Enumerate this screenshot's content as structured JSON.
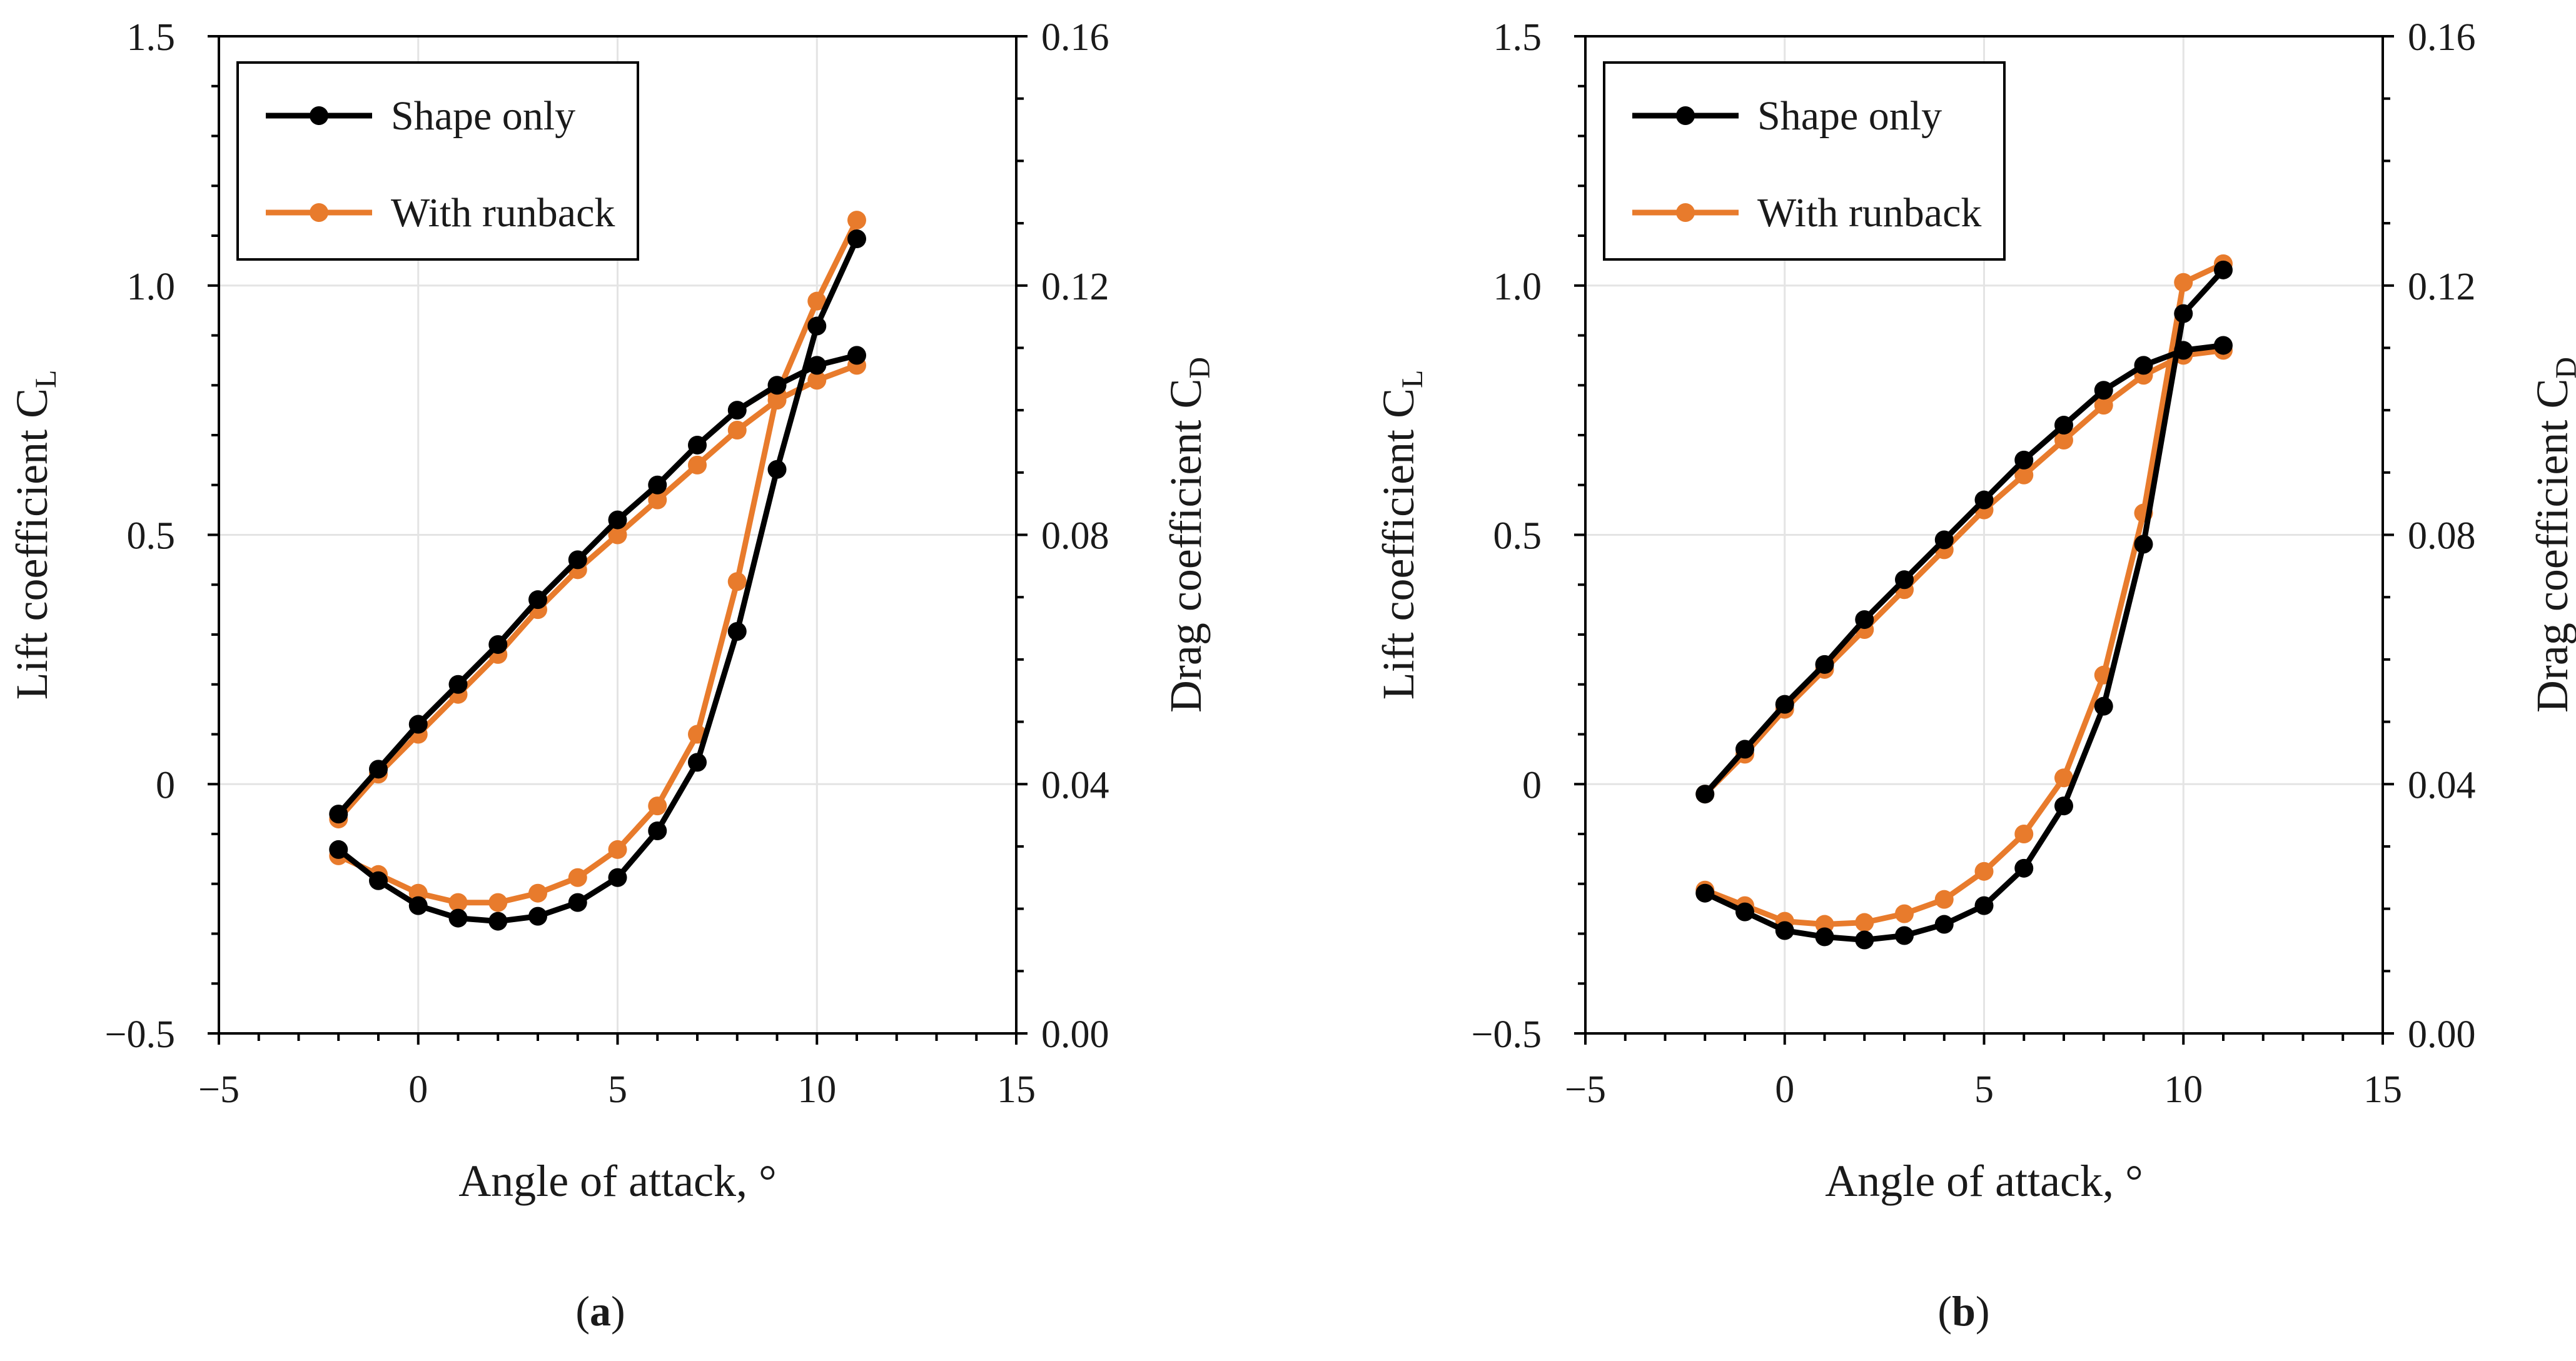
{
  "colors": {
    "shape_only": "#000000",
    "with_runback": "#E87B2C",
    "grid": "#e4e4e4",
    "axis": "#000000"
  },
  "chart_data": [
    {
      "type": "line",
      "panel_label": "(a)",
      "panel_letter": "a",
      "xlabel": "Angle of attack, °",
      "ylabel_left": "Lift coefficient C",
      "ylabel_left_sub": "L",
      "ylabel_right": "Drag coefficient C",
      "ylabel_right_sub": "D",
      "xlim": [
        -5,
        15
      ],
      "ylim_left": [
        -0.5,
        1.5
      ],
      "ylim_right": [
        0.0,
        0.16
      ],
      "x_ticks": [
        -5,
        0,
        5,
        10,
        15
      ],
      "x_tick_labels": [
        "−5",
        "0",
        "5",
        "10",
        "15"
      ],
      "y_left_ticks": [
        -0.5,
        0,
        0.5,
        1.0,
        1.5
      ],
      "y_left_tick_labels": [
        "−0.5",
        "0",
        "0.5",
        "1.0",
        "1.5"
      ],
      "y_right_ticks": [
        0.0,
        0.04,
        0.08,
        0.12,
        0.16
      ],
      "y_right_tick_labels": [
        "0.00",
        "0.04",
        "0.08",
        "0.12",
        "0.16"
      ],
      "legend": [
        "Shape only",
        "With runback"
      ],
      "legend_position": "top-left",
      "x": [
        -2,
        -1,
        0,
        1,
        2,
        3,
        4,
        5,
        6,
        7,
        8,
        9,
        10,
        11
      ],
      "series": [
        {
          "name": "Shape only",
          "quantity": "lift",
          "axis": "left",
          "color_key": "shape_only",
          "values": [
            -0.06,
            0.03,
            0.12,
            0.2,
            0.28,
            0.37,
            0.45,
            0.53,
            0.6,
            0.68,
            0.75,
            0.8,
            0.84,
            0.86
          ]
        },
        {
          "name": "With runback",
          "quantity": "lift",
          "axis": "left",
          "color_key": "with_runback",
          "values": [
            -0.07,
            0.02,
            0.1,
            0.18,
            0.26,
            0.35,
            0.43,
            0.5,
            0.57,
            0.64,
            0.71,
            0.77,
            0.81,
            0.84
          ]
        },
        {
          "name": "Shape only",
          "quantity": "drag",
          "axis": "right",
          "color_key": "shape_only",
          "values": [
            0.0295,
            0.0245,
            0.0205,
            0.0185,
            0.018,
            0.0188,
            0.021,
            0.025,
            0.0325,
            0.0435,
            0.0645,
            0.0905,
            0.1135,
            0.1275
          ]
        },
        {
          "name": "With runback",
          "quantity": "drag",
          "axis": "right",
          "color_key": "with_runback",
          "values": [
            0.0285,
            0.0255,
            0.0225,
            0.021,
            0.021,
            0.0225,
            0.025,
            0.0295,
            0.0365,
            0.048,
            0.0725,
            0.1025,
            0.1175,
            0.1305
          ]
        }
      ]
    },
    {
      "type": "line",
      "panel_label": "(b)",
      "panel_letter": "b",
      "xlabel": "Angle of attack, °",
      "ylabel_left": "Lift coefficient C",
      "ylabel_left_sub": "L",
      "ylabel_right": "Drag coefficient C",
      "ylabel_right_sub": "D",
      "xlim": [
        -5,
        15
      ],
      "ylim_left": [
        -0.5,
        1.5
      ],
      "ylim_right": [
        0.0,
        0.16
      ],
      "x_ticks": [
        -5,
        0,
        5,
        10,
        15
      ],
      "x_tick_labels": [
        "−5",
        "0",
        "5",
        "10",
        "15"
      ],
      "y_left_ticks": [
        -0.5,
        0,
        0.5,
        1.0,
        1.5
      ],
      "y_left_tick_labels": [
        "−0.5",
        "0",
        "0.5",
        "1.0",
        "1.5"
      ],
      "y_right_ticks": [
        0.0,
        0.04,
        0.08,
        0.12,
        0.16
      ],
      "y_right_tick_labels": [
        "0.00",
        "0.04",
        "0.08",
        "0.12",
        "0.16"
      ],
      "legend": [
        "Shape only",
        "With runback"
      ],
      "legend_position": "top-left",
      "x": [
        -2,
        -1,
        0,
        1,
        2,
        3,
        4,
        5,
        6,
        7,
        8,
        9,
        10,
        11
      ],
      "series": [
        {
          "name": "Shape only",
          "quantity": "lift",
          "axis": "left",
          "color_key": "shape_only",
          "values": [
            -0.02,
            0.07,
            0.16,
            0.24,
            0.33,
            0.41,
            0.49,
            0.57,
            0.65,
            0.72,
            0.79,
            0.84,
            0.87,
            0.88
          ]
        },
        {
          "name": "With runback",
          "quantity": "lift",
          "axis": "left",
          "color_key": "with_runback",
          "values": [
            -0.02,
            0.06,
            0.15,
            0.23,
            0.31,
            0.39,
            0.47,
            0.55,
            0.62,
            0.69,
            0.76,
            0.82,
            0.86,
            0.87
          ]
        },
        {
          "name": "Shape only",
          "quantity": "drag",
          "axis": "right",
          "color_key": "shape_only",
          "values": [
            0.0225,
            0.0195,
            0.0165,
            0.0155,
            0.015,
            0.0157,
            0.0175,
            0.0205,
            0.0265,
            0.0365,
            0.0525,
            0.0785,
            0.1155,
            0.1225
          ]
        },
        {
          "name": "With runback",
          "quantity": "drag",
          "axis": "right",
          "color_key": "with_runback",
          "values": [
            0.023,
            0.0205,
            0.018,
            0.0175,
            0.0178,
            0.0192,
            0.0215,
            0.026,
            0.032,
            0.041,
            0.0575,
            0.0835,
            0.1205,
            0.1235
          ]
        }
      ]
    }
  ]
}
